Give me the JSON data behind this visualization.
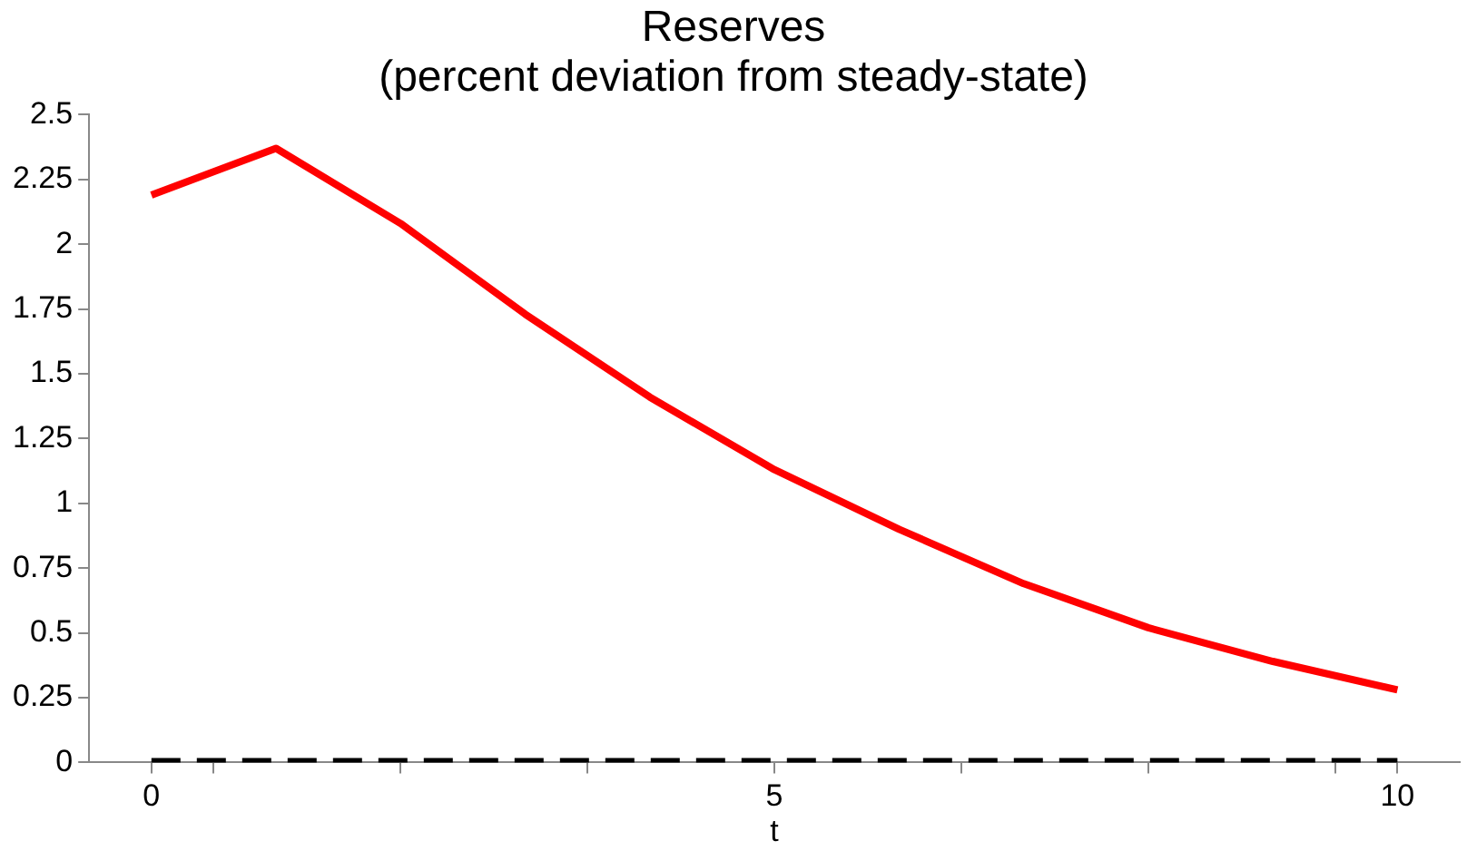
{
  "chart_data": {
    "type": "line",
    "title": "Reserves",
    "subtitle": "(percent deviation from steady-state)",
    "xlabel": "t",
    "x": [
      0,
      1,
      2,
      3,
      4,
      5,
      6,
      7,
      8,
      9,
      10
    ],
    "series": [
      {
        "color": "#ff0000",
        "values": [
          2.19,
          2.37,
          2.08,
          1.73,
          1.41,
          1.13,
          0.9,
          0.69,
          0.52,
          0.39,
          0.28
        ],
        "line_style": "solid"
      },
      {
        "color": "#000000",
        "values": [
          0,
          0,
          0,
          0,
          0,
          0,
          0,
          0,
          0,
          0,
          0
        ],
        "line_style": "dashed"
      }
    ],
    "xlim": [
      -0.5,
      10.5
    ],
    "xticks": [
      0,
      {
        "value": 0.5,
        "label": null
      },
      {
        "value": 2,
        "label": null
      },
      {
        "value": 3.5,
        "label": null
      },
      5,
      {
        "value": 6.5,
        "label": null
      },
      {
        "value": 8,
        "label": null
      },
      {
        "value": 9.5,
        "label": null
      },
      10
    ],
    "ylim": [
      0,
      2.5
    ],
    "yticks": [
      0,
      0.25,
      0.5,
      0.75,
      1,
      1.25,
      1.5,
      1.75,
      2,
      2.25,
      2.5
    ],
    "grid": false,
    "legend": false,
    "marker": "none"
  }
}
